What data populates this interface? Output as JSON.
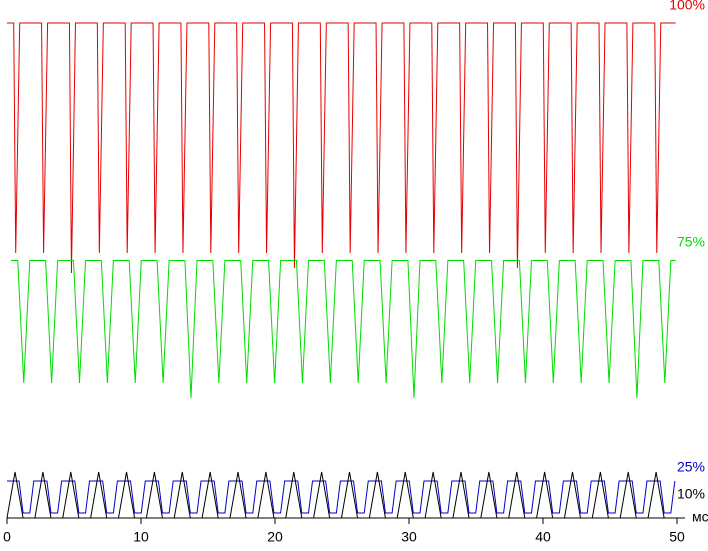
{
  "chart_data": {
    "type": "line",
    "xlabel": "мс",
    "xlim": [
      0,
      50
    ],
    "xticks": [
      0,
      10,
      20,
      30,
      40,
      50
    ],
    "ylim": [
      0,
      100
    ],
    "grid": false,
    "series": [
      {
        "name": "100%",
        "color": "#e60000",
        "x": [
          0,
          0.5,
          0.65,
          0.95,
          2.58,
          2.73,
          3.03,
          4.66,
          4.81,
          5.11,
          6.74,
          6.89,
          7.19,
          8.82,
          8.97,
          9.27,
          10.9,
          11.05,
          11.35,
          12.98,
          13.13,
          13.43,
          15.06,
          15.21,
          15.51,
          17.14,
          17.29,
          17.59,
          19.22,
          19.37,
          19.67,
          21.3,
          21.45,
          21.75,
          23.38,
          23.53,
          23.83,
          25.46,
          25.61,
          25.91,
          27.54,
          27.69,
          27.99,
          29.62,
          29.77,
          30.07,
          31.7,
          31.85,
          32.15,
          33.78,
          33.93,
          34.23,
          35.86,
          36.01,
          36.31,
          37.94,
          38.09,
          38.39,
          40.02,
          40.17,
          40.47,
          42.1,
          42.25,
          42.55,
          44.18,
          44.33,
          44.63,
          46.26,
          46.41,
          46.71,
          48.34,
          48.49,
          48.79,
          49.9
        ],
        "values": [
          99,
          99,
          53,
          99,
          99,
          53,
          99,
          99,
          49,
          99,
          99,
          53,
          99,
          99,
          53,
          99,
          99,
          53,
          99,
          99,
          53,
          99,
          99,
          53,
          99,
          99,
          53,
          99,
          99,
          53,
          99,
          99,
          50,
          99,
          99,
          53,
          99,
          99,
          53,
          99,
          99,
          53,
          99,
          99,
          53,
          99,
          99,
          53,
          99,
          99,
          53,
          99,
          99,
          53,
          99,
          99,
          50,
          99,
          99,
          53,
          99,
          99,
          53,
          99,
          99,
          53,
          99,
          99,
          53,
          99,
          99,
          53,
          99,
          99
        ]
      },
      {
        "name": "75%",
        "color": "#00dd00",
        "x": [
          0.3,
          0.8,
          1.25,
          1.7,
          2.88,
          3.33,
          3.78,
          4.96,
          5.41,
          5.86,
          7.04,
          7.49,
          7.94,
          9.12,
          9.57,
          10.02,
          11.2,
          11.65,
          12.1,
          13.28,
          13.73,
          14.18,
          15.36,
          15.81,
          16.26,
          17.44,
          17.89,
          18.34,
          19.52,
          19.97,
          20.42,
          21.6,
          22.05,
          22.5,
          23.68,
          24.13,
          24.58,
          25.76,
          26.21,
          26.66,
          27.84,
          28.29,
          28.74,
          29.92,
          30.37,
          30.82,
          32,
          32.45,
          32.9,
          34.08,
          34.53,
          34.98,
          36.16,
          36.61,
          37.06,
          38.24,
          38.69,
          39.14,
          40.32,
          40.77,
          41.22,
          42.4,
          42.85,
          43.3,
          44.48,
          44.93,
          45.38,
          46.56,
          47.01,
          47.46,
          48.64,
          49.09,
          49.54,
          49.9
        ],
        "values": [
          51.5,
          51.5,
          27,
          51.5,
          51.5,
          27,
          51.5,
          51.5,
          27,
          51.5,
          51.5,
          27,
          51.5,
          51.5,
          27,
          51.5,
          51.5,
          27,
          51.5,
          51.5,
          24,
          51.5,
          51.5,
          27,
          51.5,
          51.5,
          27,
          51.5,
          51.5,
          27,
          51.5,
          51.5,
          27,
          51.5,
          51.5,
          27,
          51.5,
          51.5,
          27,
          51.5,
          51.5,
          27,
          51.5,
          51.5,
          24,
          51.5,
          51.5,
          27,
          51.5,
          51.5,
          27,
          51.5,
          51.5,
          27,
          51.5,
          51.5,
          27,
          51.5,
          51.5,
          27,
          51.5,
          51.5,
          27,
          51.5,
          51.5,
          27,
          51.5,
          51.5,
          24,
          51.5,
          51.5,
          27,
          51.5,
          51.5
        ]
      },
      {
        "name": "25%",
        "color": "#0000c8",
        "x": [
          0,
          0.9,
          1.2,
          1.7,
          2,
          2.98,
          3.28,
          3.78,
          4.08,
          5.06,
          5.36,
          5.86,
          6.16,
          7.14,
          7.44,
          7.94,
          8.24,
          9.22,
          9.52,
          10.02,
          10.32,
          11.3,
          11.6,
          12.1,
          12.4,
          13.38,
          13.68,
          14.18,
          14.48,
          15.46,
          15.76,
          16.26,
          16.56,
          17.54,
          17.84,
          18.34,
          18.64,
          19.62,
          19.92,
          20.42,
          20.72,
          21.7,
          22,
          22.5,
          22.8,
          23.78,
          24.08,
          24.58,
          24.88,
          25.86,
          26.16,
          26.66,
          26.96,
          27.94,
          28.24,
          28.74,
          29.04,
          30.02,
          30.32,
          30.82,
          31.12,
          32.1,
          32.4,
          32.9,
          33.2,
          34.18,
          34.48,
          34.98,
          35.28,
          36.26,
          36.56,
          37.06,
          37.36,
          38.34,
          38.64,
          39.14,
          39.44,
          40.42,
          40.72,
          41.22,
          41.52,
          42.5,
          42.8,
          43.3,
          43.6,
          44.58,
          44.88,
          45.38,
          45.68,
          46.66,
          46.96,
          47.46,
          47.76,
          48.74,
          49.04,
          49.54,
          49.84
        ],
        "values": [
          7.4,
          7.4,
          1,
          1,
          7.4,
          7.4,
          1,
          1,
          7.4,
          7.4,
          1,
          1,
          7.4,
          7.4,
          1,
          1,
          7.4,
          7.4,
          1,
          1,
          7.4,
          7.4,
          1,
          1,
          7.4,
          7.4,
          1,
          1,
          7.4,
          7.4,
          1,
          1,
          7.4,
          7.4,
          1,
          1,
          7.4,
          7.4,
          1,
          1,
          7.4,
          7.4,
          1,
          1,
          7.4,
          7.4,
          1,
          1,
          7.4,
          7.4,
          1,
          1,
          7.4,
          7.4,
          1,
          1,
          7.4,
          7.4,
          1,
          1,
          7.4,
          7.4,
          1,
          1,
          7.4,
          7.4,
          1,
          1,
          7.4,
          7.4,
          1,
          1,
          7.4,
          7.4,
          1,
          1,
          7.4,
          7.4,
          1,
          1,
          7.4,
          7.4,
          1,
          1,
          7.4,
          7.4,
          1,
          1,
          7.4,
          7.4,
          1,
          1,
          7.4,
          7.4,
          1,
          1,
          7.4
        ]
      },
      {
        "name": "10%",
        "color": "#000000",
        "x": [
          0,
          0.6,
          1.2,
          2.08,
          2.68,
          3.28,
          4.16,
          4.76,
          5.36,
          6.24,
          6.84,
          7.44,
          8.32,
          8.92,
          9.52,
          10.4,
          11,
          11.6,
          12.48,
          13.08,
          13.68,
          14.56,
          15.16,
          15.76,
          16.64,
          17.24,
          17.84,
          18.72,
          19.32,
          19.92,
          20.8,
          21.4,
          22,
          22.88,
          23.48,
          24.08,
          24.96,
          25.56,
          26.16,
          27.04,
          27.64,
          28.24,
          29.12,
          29.72,
          30.32,
          31.2,
          31.8,
          32.4,
          33.28,
          33.88,
          34.48,
          35.36,
          35.96,
          36.56,
          37.44,
          38.04,
          38.64,
          39.52,
          40.12,
          40.72,
          41.6,
          42.2,
          42.8,
          43.68,
          44.28,
          44.88,
          45.76,
          46.36,
          46.96,
          47.84,
          48.44,
          49.04
        ],
        "values": [
          0,
          9.2,
          0,
          0,
          9.2,
          0,
          0,
          9.2,
          0,
          0,
          9.2,
          0,
          0,
          9.2,
          0,
          0,
          9.2,
          0,
          0,
          9.2,
          0,
          0,
          9.2,
          0,
          0,
          9.2,
          0,
          0,
          9.2,
          0,
          0,
          9.2,
          0,
          0,
          9.2,
          0,
          0,
          9.2,
          0,
          0,
          9.2,
          0,
          0,
          9.2,
          0,
          0,
          9.2,
          0,
          0,
          9.2,
          0,
          0,
          9.2,
          0,
          0,
          9.2,
          0,
          0,
          9.2,
          0,
          0,
          9.2,
          0,
          0,
          9.2,
          0,
          0,
          9.2,
          0,
          0,
          9.2,
          0
        ]
      }
    ]
  }
}
